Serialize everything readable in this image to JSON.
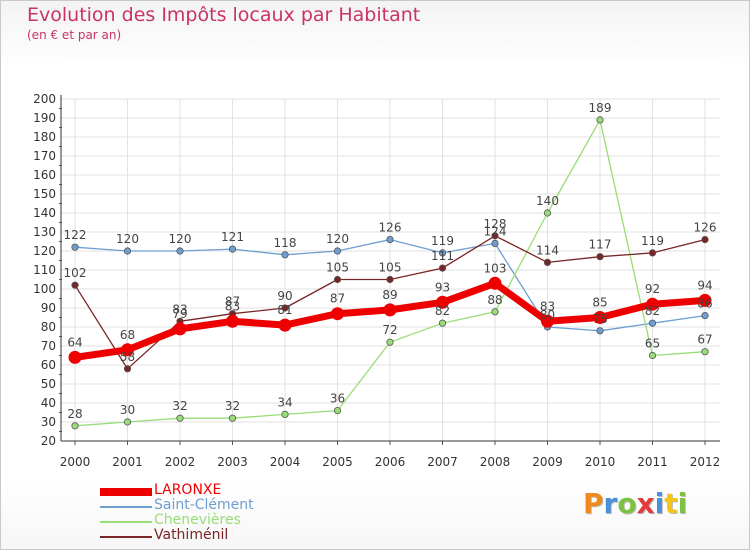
{
  "title": "Evolution des Impôts locaux par Habitant",
  "subtitle": "(en € et par an)",
  "logo_text": "Proxiti",
  "logo_colors": [
    "#f08a1e",
    "#4a90d9",
    "#7cc243",
    "#e23b3b",
    "#4a90d9",
    "#f5c518",
    "#7cc243"
  ],
  "chart_data": {
    "type": "line",
    "x": [
      "2000",
      "2001",
      "2002",
      "2003",
      "2004",
      "2005",
      "2006",
      "2007",
      "2008",
      "2009",
      "2010",
      "2011",
      "2012"
    ],
    "ylim": [
      20,
      200
    ],
    "yticks": [
      20,
      30,
      40,
      50,
      60,
      70,
      80,
      90,
      100,
      110,
      120,
      130,
      140,
      150,
      160,
      170,
      180,
      190,
      200
    ],
    "grid": true,
    "legend_position": "bottom-left",
    "series": [
      {
        "name": "LARONXE",
        "values": [
          64,
          68,
          79,
          83,
          81,
          87,
          89,
          93,
          103,
          83,
          85,
          92,
          94
        ],
        "color": "#ee0000",
        "emphasis": true
      },
      {
        "name": "Saint-Clément",
        "values": [
          122,
          120,
          120,
          121,
          118,
          120,
          126,
          119,
          124,
          80,
          78,
          82,
          86
        ],
        "color": "#6f9fd0"
      },
      {
        "name": "Chenevières",
        "values": [
          28,
          30,
          32,
          32,
          34,
          36,
          72,
          82,
          88,
          140,
          189,
          65,
          67
        ],
        "color": "#99dd77"
      },
      {
        "name": "Vathiménil",
        "values": [
          102,
          58,
          83,
          87,
          90,
          105,
          105,
          111,
          128,
          114,
          117,
          119,
          126
        ],
        "color": "#7a2525"
      }
    ]
  }
}
